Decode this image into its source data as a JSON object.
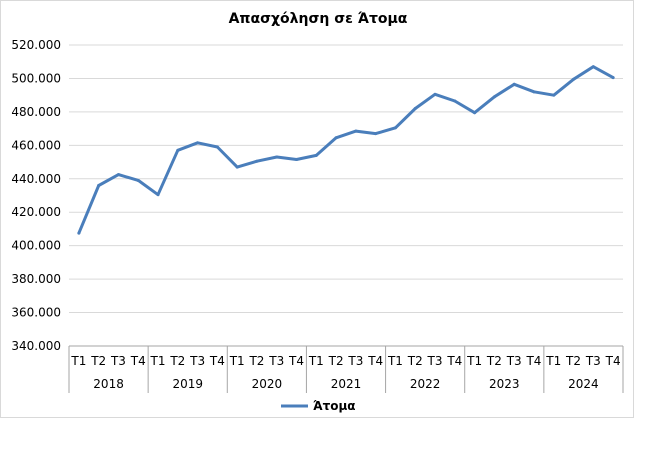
{
  "chart_data": {
    "type": "line",
    "title": "Απασχόληση σε Άτομα",
    "xlabel": "",
    "ylabel": "",
    "ylim": [
      340000,
      520000
    ],
    "yticks": [
      340000,
      360000,
      380000,
      400000,
      420000,
      440000,
      460000,
      480000,
      500000,
      520000
    ],
    "ytick_labels": [
      "340.000",
      "360.000",
      "380.000",
      "400.000",
      "420.000",
      "440.000",
      "460.000",
      "480.000",
      "500.000",
      "520.000"
    ],
    "quarter_labels": [
      "Τ1",
      "Τ2",
      "Τ3",
      "Τ4"
    ],
    "years": [
      "2018",
      "2019",
      "2020",
      "2021",
      "2022",
      "2023",
      "2024"
    ],
    "grid": true,
    "legend_position": "bottom",
    "series": [
      {
        "name": "Άτομα",
        "color": "#4a7ebb",
        "values": [
          407500,
          436000,
          442500,
          439000,
          430500,
          457000,
          461500,
          459000,
          447000,
          450500,
          453000,
          451500,
          454000,
          464500,
          468500,
          467000,
          470500,
          482000,
          490500,
          486500,
          479500,
          489000,
          496500,
          492000,
          490000,
          499500,
          507000,
          500500
        ]
      }
    ]
  }
}
